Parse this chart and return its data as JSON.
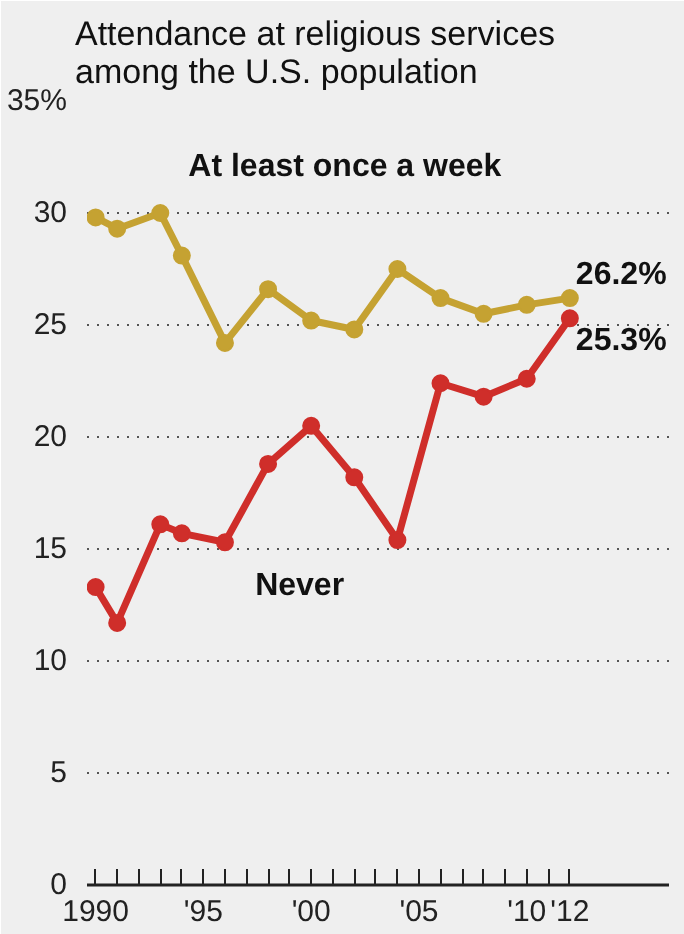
{
  "chart_data": {
    "type": "line",
    "title": "Attendance at religious services among the U.S. population",
    "x": [
      1990,
      1991,
      1993,
      1994,
      1996,
      1998,
      2000,
      2002,
      2004,
      2006,
      2008,
      2010,
      2012
    ],
    "series": [
      {
        "name": "At least once a week",
        "color": "#c5a232",
        "values": [
          29.8,
          29.3,
          30.0,
          28.1,
          24.2,
          26.6,
          25.2,
          24.8,
          27.5,
          26.2,
          25.5,
          25.9,
          26.2
        ],
        "value_labels": [
          null,
          null,
          null,
          null,
          null,
          null,
          null,
          null,
          null,
          null,
          null,
          null,
          "26.2%"
        ]
      },
      {
        "name": "Never",
        "color": "#cf2e2a",
        "values": [
          13.3,
          11.7,
          16.1,
          15.7,
          15.3,
          18.8,
          20.5,
          18.2,
          15.4,
          22.4,
          21.8,
          22.6,
          25.3
        ],
        "value_labels": [
          null,
          null,
          null,
          null,
          null,
          null,
          null,
          null,
          null,
          null,
          null,
          null,
          "25.3%"
        ]
      }
    ],
    "xlim": [
      1989.6,
      2016.6
    ],
    "ylim": [
      0,
      35
    ],
    "xticks": [
      {
        "value": 1990,
        "label": "1990"
      },
      {
        "value": 1991,
        "label": null
      },
      {
        "value": 1992,
        "label": null
      },
      {
        "value": 1993,
        "label": null
      },
      {
        "value": 1994,
        "label": null
      },
      {
        "value": 1995,
        "label": "'95"
      },
      {
        "value": 1996,
        "label": null
      },
      {
        "value": 1997,
        "label": null
      },
      {
        "value": 1998,
        "label": null
      },
      {
        "value": 1999,
        "label": null
      },
      {
        "value": 2000,
        "label": "'00"
      },
      {
        "value": 2001,
        "label": null
      },
      {
        "value": 2002,
        "label": null
      },
      {
        "value": 2003,
        "label": null
      },
      {
        "value": 2004,
        "label": null
      },
      {
        "value": 2005,
        "label": "'05"
      },
      {
        "value": 2006,
        "label": null
      },
      {
        "value": 2007,
        "label": null
      },
      {
        "value": 2008,
        "label": null
      },
      {
        "value": 2009,
        "label": null
      },
      {
        "value": 2010,
        "label": "'10"
      },
      {
        "value": 2011,
        "label": null
      },
      {
        "value": 2012,
        "label": "'12"
      }
    ],
    "yticks": [
      0,
      5,
      10,
      15,
      20,
      25,
      30,
      {
        "value": 35,
        "label": "35%"
      }
    ],
    "grid": "y",
    "marker": "circle",
    "line_style": "solid",
    "legend": false
  }
}
